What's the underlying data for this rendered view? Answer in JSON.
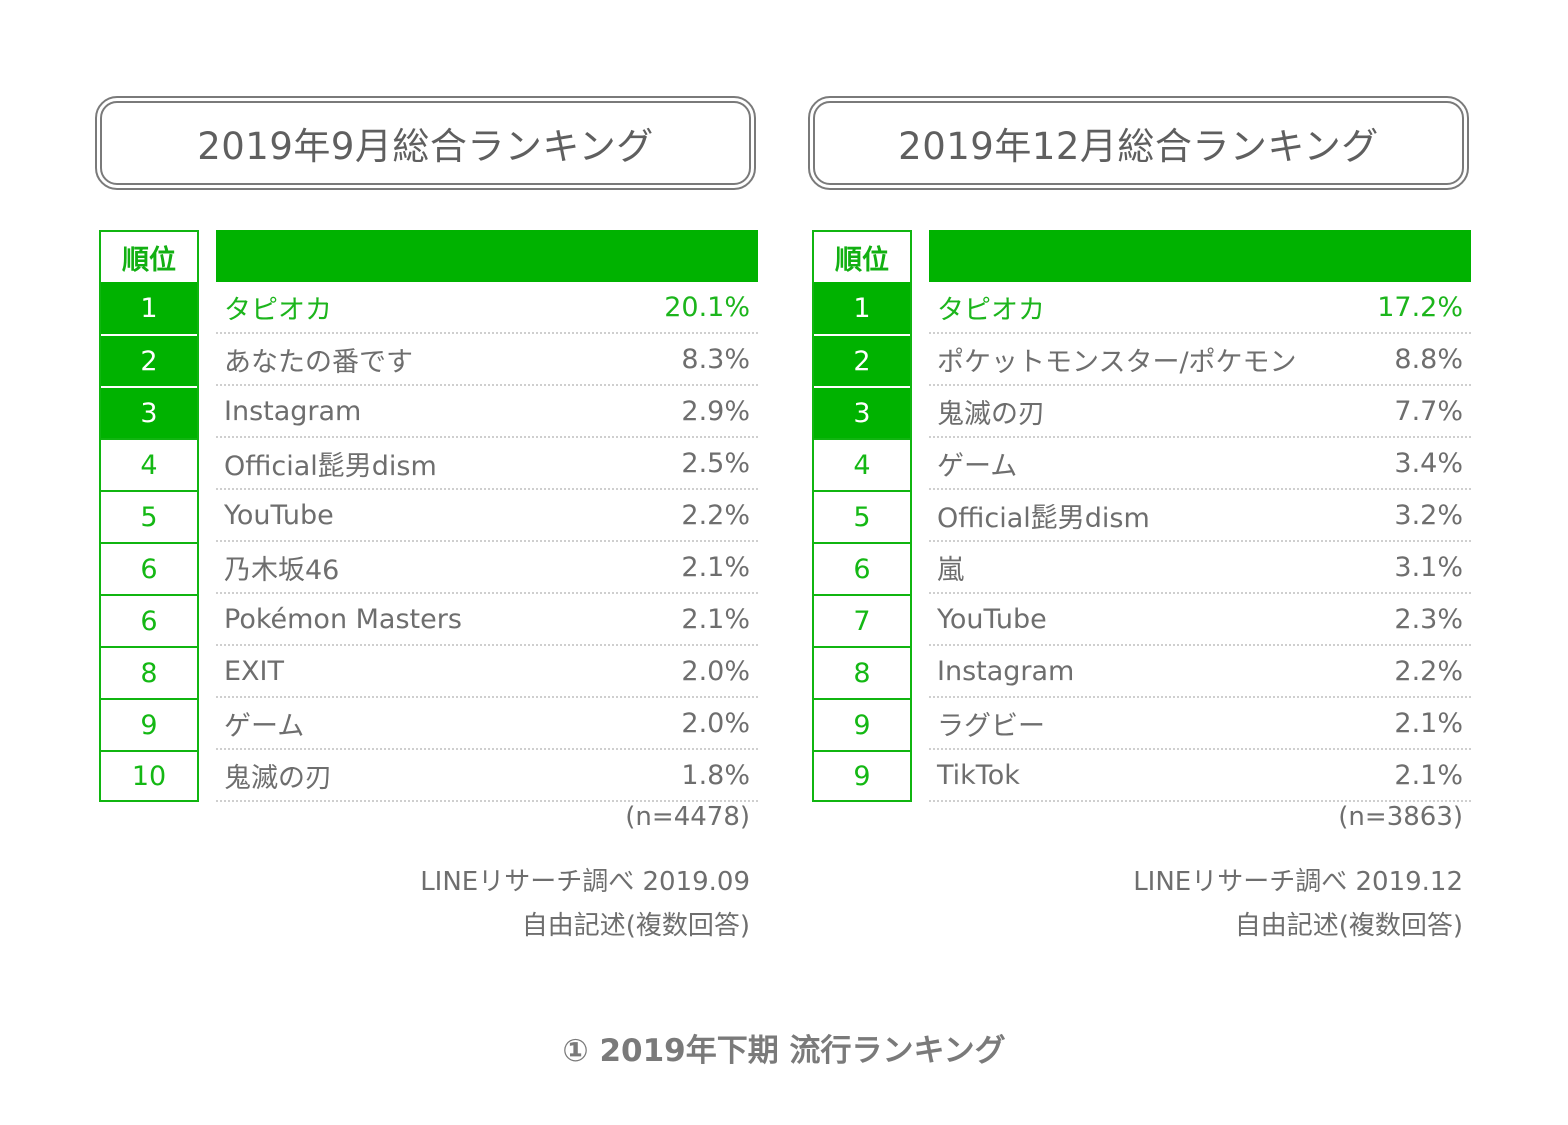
{
  "panels": [
    {
      "title": "2019年9月総合ランキング",
      "rank_header": "順位",
      "rows": [
        {
          "rank": "1",
          "name": "タピオカ",
          "pct": "20.1%"
        },
        {
          "rank": "2",
          "name": "あなたの番です",
          "pct": "8.3%"
        },
        {
          "rank": "3",
          "name": "Instagram",
          "pct": "2.9%"
        },
        {
          "rank": "4",
          "name": "Official髭男dism",
          "pct": "2.5%"
        },
        {
          "rank": "5",
          "name": "YouTube",
          "pct": "2.2%"
        },
        {
          "rank": "6",
          "name": "乃木坂46",
          "pct": "2.1%"
        },
        {
          "rank": "6",
          "name": "Pokémon Masters",
          "pct": "2.1%"
        },
        {
          "rank": "8",
          "name": "EXIT",
          "pct": "2.0%"
        },
        {
          "rank": "9",
          "name": "ゲーム",
          "pct": "2.0%"
        },
        {
          "rank": "10",
          "name": "鬼滅の刃",
          "pct": "1.8%"
        }
      ],
      "sample": "(n=4478)",
      "source_line1": "LINEリサーチ調べ 2019.09",
      "source_line2": "自由記述(複数回答)"
    },
    {
      "title": "2019年12月総合ランキング",
      "rank_header": "順位",
      "rows": [
        {
          "rank": "1",
          "name": "タピオカ",
          "pct": "17.2%"
        },
        {
          "rank": "2",
          "name": "ポケットモンスター/ポケモン",
          "pct": "8.8%"
        },
        {
          "rank": "3",
          "name": "鬼滅の刃",
          "pct": "7.7%"
        },
        {
          "rank": "4",
          "name": "ゲーム",
          "pct": "3.4%"
        },
        {
          "rank": "5",
          "name": "Official髭男dism",
          "pct": "3.2%"
        },
        {
          "rank": "6",
          "name": "嵐",
          "pct": "3.1%"
        },
        {
          "rank": "7",
          "name": "YouTube",
          "pct": "2.3%"
        },
        {
          "rank": "8",
          "name": "Instagram",
          "pct": "2.2%"
        },
        {
          "rank": "9",
          "name": "ラグビー",
          "pct": "2.1%"
        },
        {
          "rank": "9",
          "name": "TikTok",
          "pct": "2.1%"
        }
      ],
      "sample": "(n=3863)",
      "source_line1": "LINEリサーチ調べ 2019.12",
      "source_line2": "自由記述(複数回答)"
    }
  ],
  "caption": "① 2019年下期 流行ランキング",
  "colors": {
    "accent_green": "#00b200",
    "highlight_text": "#1cb51c",
    "text_gray": "#6e6e6e",
    "border_gray": "#7a7a7a"
  }
}
